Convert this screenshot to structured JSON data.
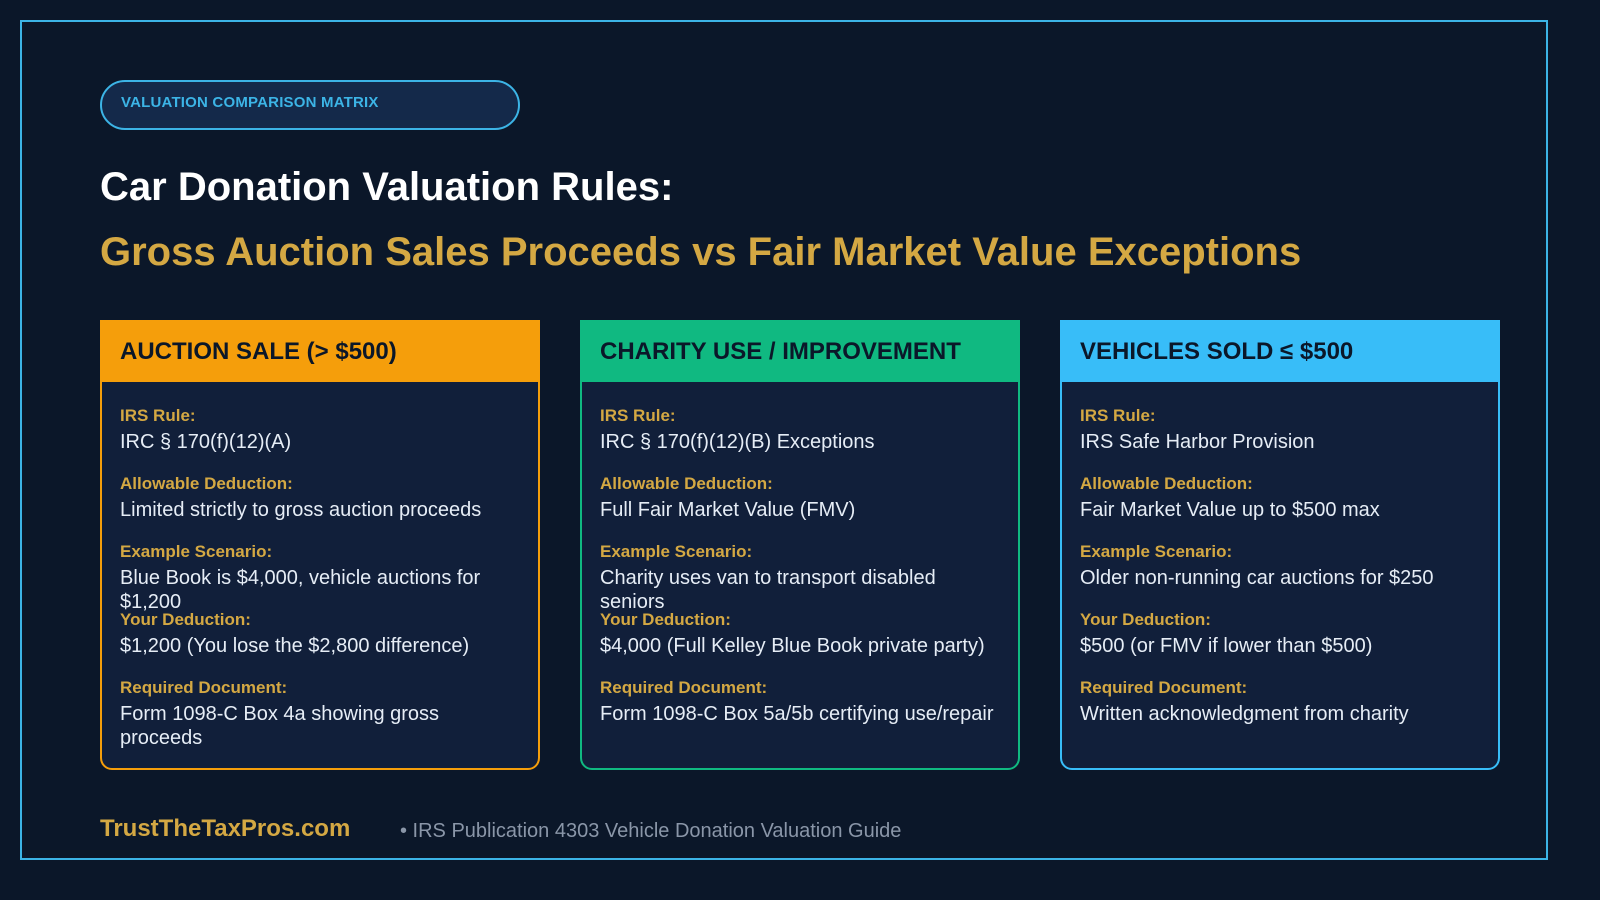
{
  "badge": "VALUATION COMPARISON MATRIX",
  "title": "Car Donation Valuation Rules:",
  "subtitle": "Gross Auction Sales Proceeds vs Fair Market Value Exceptions",
  "colors": {
    "auction": "#f59e0b",
    "charity": "#10b981",
    "small": "#38bdf8",
    "gold": "#d4a843",
    "background": "#0b1729"
  },
  "cards": [
    {
      "title": "AUCTION SALE (> $500)",
      "irs_rule_label": "IRS Rule:",
      "irs_rule": "IRC § 170(f)(12)(A)",
      "deduction_label": "Allowable Deduction:",
      "deduction": "Limited strictly to gross auction proceeds",
      "example_label": "Example Scenario:",
      "example": "Blue Book is $4,000, vehicle auctions for $1,200",
      "your_label": "Your Deduction:",
      "your": "$1,200 (You lose the $2,800 difference)",
      "doc_label": "Required Document:",
      "doc": "Form 1098-C Box 4a showing gross proceeds"
    },
    {
      "title": "CHARITY USE / IMPROVEMENT",
      "irs_rule_label": "IRS Rule:",
      "irs_rule": "IRC § 170(f)(12)(B) Exceptions",
      "deduction_label": "Allowable Deduction:",
      "deduction": "Full Fair Market Value (FMV)",
      "example_label": "Example Scenario:",
      "example": "Charity uses van to transport disabled seniors",
      "your_label": "Your Deduction:",
      "your": "$4,000 (Full Kelley Blue Book private party)",
      "doc_label": "Required Document:",
      "doc": "Form 1098-C Box 5a/5b certifying use/repair"
    },
    {
      "title": "VEHICLES SOLD ≤ $500",
      "irs_rule_label": "IRS Rule:",
      "irs_rule": "IRS Safe Harbor Provision",
      "deduction_label": "Allowable Deduction:",
      "deduction": "Fair Market Value up to $500 max",
      "example_label": "Example Scenario:",
      "example": "Older non-running car auctions for $250",
      "your_label": "Your Deduction:",
      "your": "$500 (or FMV if lower than $500)",
      "doc_label": "Required Document:",
      "doc": "Written acknowledgment from charity"
    }
  ],
  "footer": {
    "brand": "TrustTheTaxPros.com",
    "source": "• IRS Publication 4303 Vehicle Donation Valuation Guide"
  }
}
